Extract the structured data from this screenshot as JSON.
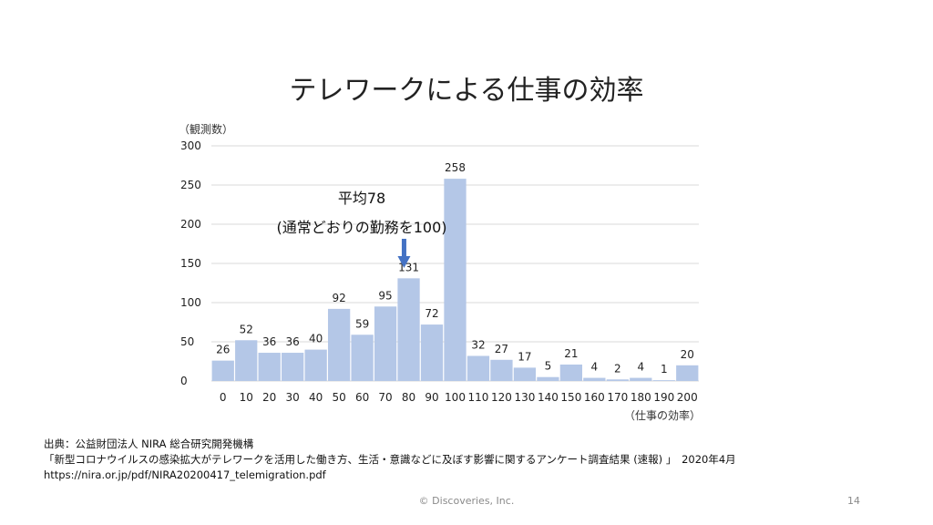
{
  "slide": {
    "title": "テレワークによる仕事の効率",
    "footer": "© Discoveries, Inc.",
    "page_number": "14"
  },
  "source": {
    "line1": "出典：公益財団法人 NIRA 総合研究開発機構",
    "line2": "「新型コロナウイルスの感染拡大がテレワークを活用した働き方、生活・意識などに及ぼす影響に関するアンケート調査結果 (速報) 」　2020年4月",
    "line3": "https://nira.or.jp/pdf/NIRA20200417_telemigration.pdf"
  },
  "chart_data": {
    "type": "bar",
    "ylabel": "（観測数）",
    "xlabel": "（仕事の効率）",
    "categories": [
      "0",
      "10",
      "20",
      "30",
      "40",
      "50",
      "60",
      "70",
      "80",
      "90",
      "100",
      "110",
      "120",
      "130",
      "140",
      "150",
      "160",
      "170",
      "180",
      "190",
      "200"
    ],
    "values": [
      26,
      52,
      36,
      36,
      40,
      92,
      59,
      95,
      131,
      72,
      258,
      32,
      27,
      17,
      5,
      21,
      4,
      2,
      4,
      1,
      20
    ],
    "data_labels": [
      "26",
      "52",
      "36",
      "36",
      "40",
      "92",
      "59",
      "95",
      "131",
      "72",
      "258",
      "32",
      "27",
      "17",
      "5",
      "21",
      "4",
      "2",
      "4",
      "1",
      "20"
    ],
    "y_ticks": [
      0,
      50,
      100,
      150,
      200,
      250,
      300
    ],
    "ylim": [
      0,
      300
    ],
    "grid": true,
    "bar_color": "#b4c7e7",
    "annotation": {
      "line1": "平均78",
      "line2": "(通常どおりの勤務を100)",
      "points_to_x": 78,
      "arrow_color": "#4472c4"
    }
  }
}
